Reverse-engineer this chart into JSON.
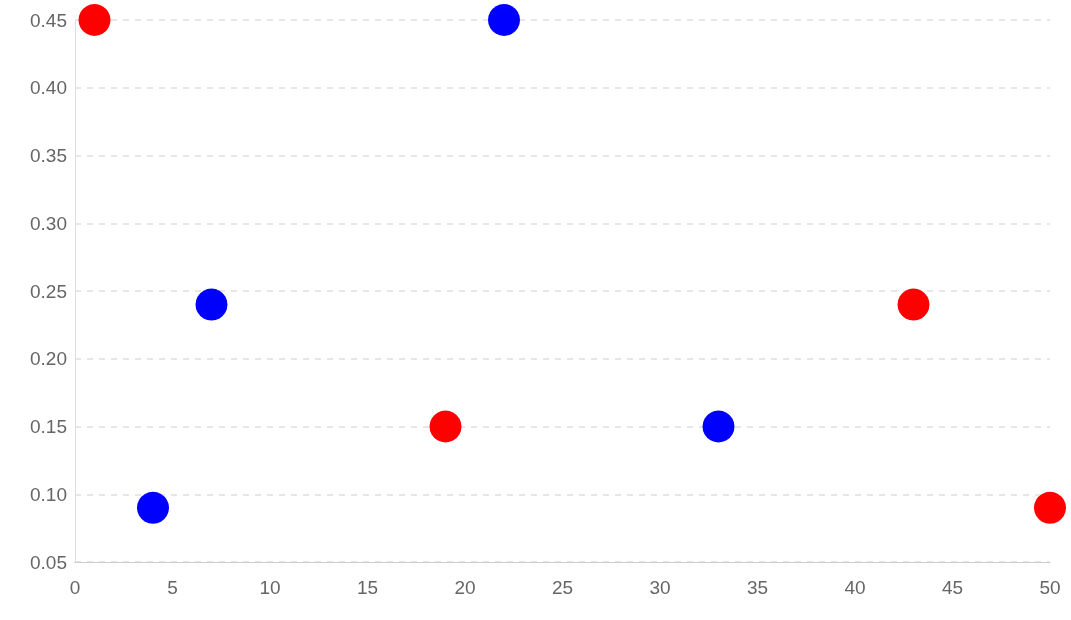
{
  "chart_data": {
    "type": "scatter",
    "xlim": [
      0,
      50
    ],
    "xticks": [
      0,
      5,
      10,
      15,
      20,
      25,
      30,
      35,
      40,
      45,
      50
    ],
    "ylim": [
      0.05,
      0.45
    ],
    "yticks": [
      {
        "value": 0.05,
        "label": "0.05"
      },
      {
        "value": 0.1,
        "label": "0.10"
      },
      {
        "value": 0.15,
        "label": "0.15"
      },
      {
        "value": 0.2,
        "label": "0.20"
      },
      {
        "value": 0.25,
        "label": "0.25"
      },
      {
        "value": 0.3,
        "label": "0.30"
      },
      {
        "value": 0.35,
        "label": "0.35"
      },
      {
        "value": 0.4,
        "label": "0.40"
      },
      {
        "value": 0.45,
        "label": "0.45"
      }
    ],
    "grid": "y",
    "marker": "circle",
    "series": [
      {
        "color": "#ff0000",
        "x": [
          1,
          19,
          43,
          50
        ],
        "values": [
          0.45,
          0.15,
          0.24,
          0.09
        ]
      },
      {
        "color": "#0000ff",
        "x": [
          4,
          7,
          22,
          33
        ],
        "values": [
          0.09,
          0.24,
          0.45,
          0.15
        ]
      }
    ]
  }
}
